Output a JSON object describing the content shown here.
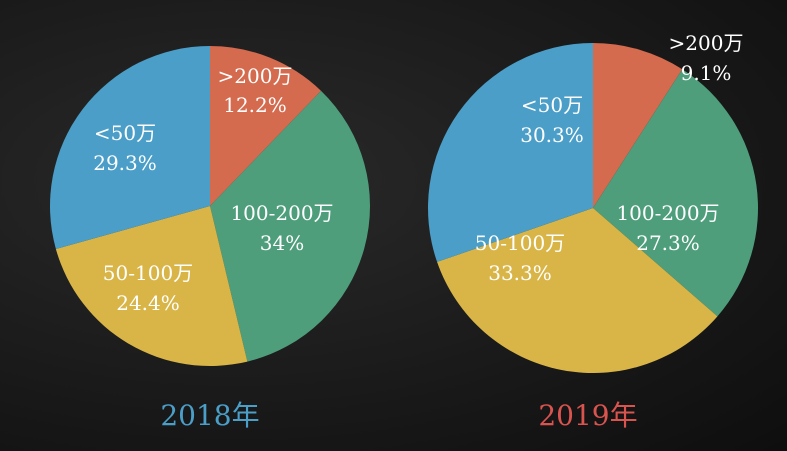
{
  "chart_data": [
    {
      "type": "pie",
      "title": "2018年",
      "title_color": "#4a9ec8",
      "slices": [
        {
          "label": ">200万",
          "value": 12.2,
          "value_label": "12.2%",
          "color": "#d46a4e"
        },
        {
          "label": "100-200万",
          "value": 34,
          "value_label": "34%",
          "color": "#4e9e7c"
        },
        {
          "label": "50-100万",
          "value": 24.4,
          "value_label": "24.4%",
          "color": "#d9b548"
        },
        {
          "label": "<50万",
          "value": 29.3,
          "value_label": "29.3%",
          "color": "#4a9ec8"
        }
      ]
    },
    {
      "type": "pie",
      "title": "2019年",
      "title_color": "#d9534f",
      "slices": [
        {
          "label": ">200万",
          "value": 9.1,
          "value_label": "9.1%",
          "color": "#d46a4e"
        },
        {
          "label": "100-200万",
          "value": 27.3,
          "value_label": "27.3%",
          "color": "#4e9e7c"
        },
        {
          "label": "50-100万",
          "value": 33.3,
          "value_label": "33.3%",
          "color": "#d9b548"
        },
        {
          "label": "<50万",
          "value": 30.3,
          "value_label": "30.3%",
          "color": "#4a9ec8"
        }
      ]
    }
  ]
}
